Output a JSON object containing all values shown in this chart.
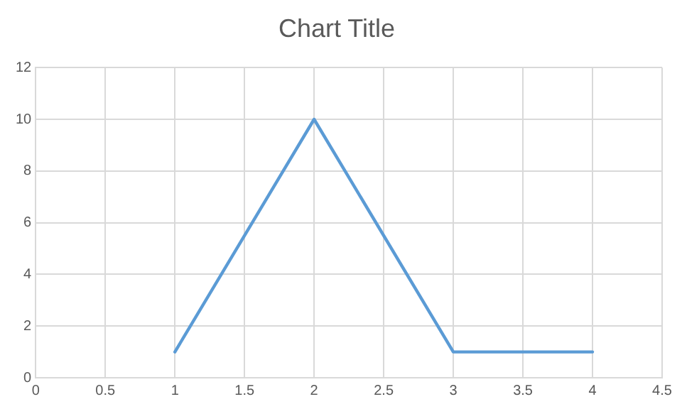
{
  "chart_data": {
    "type": "line",
    "title": "Chart Title",
    "x": [
      1,
      2,
      3,
      4
    ],
    "series": [
      {
        "color": "#5b9bd5",
        "values": [
          1,
          10,
          1,
          1
        ]
      }
    ],
    "xlim": [
      0,
      4.5
    ],
    "xticks": [
      0,
      0.5,
      1,
      1.5,
      2,
      2.5,
      3,
      3.5,
      4,
      4.5
    ],
    "ylim": [
      0,
      12
    ],
    "yticks": [
      0,
      2,
      4,
      6,
      8,
      10,
      12
    ],
    "grid": true,
    "marker": "none",
    "line_style": "solid"
  }
}
